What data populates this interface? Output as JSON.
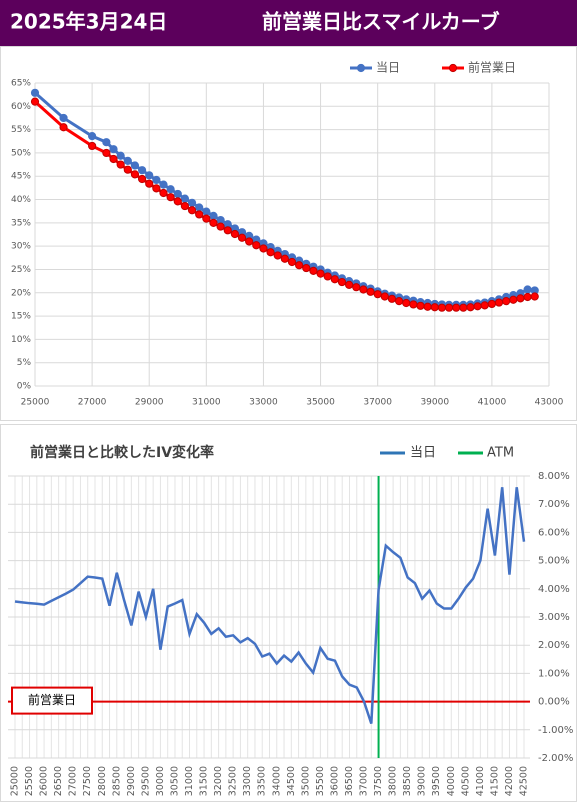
{
  "header": {
    "date": "2025年3月24日",
    "title": "前営業日比スマイルカーブ"
  },
  "chart_data": [
    {
      "type": "line",
      "x": [
        25000,
        26000,
        27000,
        27500,
        27750,
        28000,
        28250,
        28500,
        28750,
        29000,
        29250,
        29500,
        29750,
        30000,
        30250,
        30500,
        30750,
        31000,
        31250,
        31500,
        31750,
        32000,
        32250,
        32500,
        32750,
        33000,
        33250,
        33500,
        33750,
        34000,
        34250,
        34500,
        34750,
        35000,
        35250,
        35500,
        35750,
        36000,
        36250,
        36500,
        36750,
        37000,
        37250,
        37500,
        37750,
        38000,
        38250,
        38500,
        38750,
        39000,
        39250,
        39500,
        39750,
        40000,
        40250,
        40500,
        40750,
        41000,
        41250,
        41500,
        41750,
        42000,
        42250,
        42500
      ],
      "series": [
        {
          "name": "当日",
          "color": "#4472c4",
          "values": [
            62.9,
            57.5,
            53.6,
            52.3,
            50.8,
            49.4,
            48.3,
            47.3,
            46.3,
            45.2,
            44.2,
            43.2,
            42.2,
            41.2,
            40.2,
            39.3,
            38.3,
            37.4,
            36.5,
            35.6,
            34.7,
            33.8,
            33.0,
            32.2,
            31.4,
            30.6,
            29.8,
            29.0,
            28.3,
            27.6,
            26.9,
            26.2,
            25.6,
            25.0,
            24.3,
            23.7,
            23.1,
            22.5,
            22.0,
            21.4,
            20.9,
            20.3,
            19.8,
            19.4,
            19.0,
            18.6,
            18.3,
            18.0,
            17.8,
            17.6,
            17.5,
            17.4,
            17.4,
            17.4,
            17.5,
            17.7,
            17.9,
            18.2,
            18.6,
            19.1,
            19.5,
            19.9,
            20.7,
            20.5
          ]
        },
        {
          "name": "前営業日",
          "color": "#ff0000",
          "values": [
            61.0,
            55.5,
            51.5,
            50.0,
            48.7,
            47.5,
            46.4,
            45.4,
            44.4,
            43.4,
            42.4,
            41.4,
            40.5,
            39.6,
            38.6,
            37.7,
            36.8,
            35.9,
            35.0,
            34.2,
            33.4,
            32.6,
            31.8,
            31.0,
            30.2,
            29.5,
            28.7,
            28.0,
            27.3,
            26.6,
            25.9,
            25.3,
            24.7,
            24.1,
            23.5,
            22.9,
            22.3,
            21.7,
            21.2,
            20.7,
            20.2,
            19.7,
            19.2,
            18.7,
            18.2,
            17.8,
            17.5,
            17.2,
            17.0,
            16.9,
            16.8,
            16.8,
            16.8,
            16.8,
            16.9,
            17.1,
            17.3,
            17.6,
            17.9,
            18.2,
            18.5,
            18.8,
            19.1,
            19.2
          ]
        }
      ],
      "xlim": [
        25000,
        43000
      ],
      "xticks": [
        25000,
        27000,
        29000,
        31000,
        33000,
        35000,
        37000,
        39000,
        41000,
        43000
      ],
      "ylim": [
        0,
        65
      ],
      "yticks": [
        {
          "value": 0,
          "label": "0%"
        },
        {
          "value": 5,
          "label": "5%"
        },
        {
          "value": 10,
          "label": "10%"
        },
        {
          "value": 15,
          "label": "15%"
        },
        {
          "value": 20,
          "label": "20%"
        },
        {
          "value": 25,
          "label": "25%"
        },
        {
          "value": 30,
          "label": "30%"
        },
        {
          "value": 35,
          "label": "35%"
        },
        {
          "value": 40,
          "label": "40%"
        },
        {
          "value": 45,
          "label": "45%"
        },
        {
          "value": 50,
          "label": "50%"
        },
        {
          "value": 55,
          "label": "55%"
        },
        {
          "value": 60,
          "label": "60%"
        },
        {
          "value": 65,
          "label": "65%"
        }
      ],
      "grid": true,
      "legend": "top"
    },
    {
      "type": "line",
      "title": "前営業日と比較したIV変化率",
      "categories": [
        "25000",
        null,
        "25500",
        null,
        "26000",
        null,
        "26500",
        null,
        "27000",
        null,
        "27500",
        null,
        "28000",
        null,
        "28500",
        null,
        "29000",
        null,
        "29500",
        null,
        "30000",
        null,
        "30500",
        null,
        "31000",
        null,
        "31500",
        null,
        "32000",
        null,
        "32500",
        null,
        "33000",
        null,
        "33500",
        null,
        "34000",
        null,
        "34500",
        null,
        "35000",
        null,
        "35500",
        null,
        "36000",
        null,
        "36500",
        null,
        "37000",
        null,
        "37500",
        null,
        "38000",
        null,
        "38500",
        null,
        "39000",
        null,
        "39500",
        null,
        "40000",
        null,
        "40500",
        null,
        "41000",
        null,
        "41500",
        null,
        "42000",
        null,
        "42500"
      ],
      "series": [
        {
          "name": "当日",
          "color": "#4472c4",
          "values": [
            3.55,
            3.52,
            3.49,
            3.47,
            3.44,
            3.57,
            3.7,
            3.83,
            3.97,
            4.2,
            4.43,
            4.4,
            4.36,
            3.4,
            4.57,
            3.6,
            2.7,
            3.9,
            3.0,
            4.0,
            1.84,
            3.37,
            3.48,
            3.6,
            2.4,
            3.1,
            2.8,
            2.4,
            2.6,
            2.3,
            2.35,
            2.1,
            2.25,
            2.05,
            1.6,
            1.7,
            1.35,
            1.63,
            1.42,
            1.74,
            1.35,
            1.03,
            1.9,
            1.52,
            1.45,
            0.89,
            0.6,
            0.5,
            0.0,
            -0.78,
            3.97,
            5.53,
            5.3,
            5.1,
            4.4,
            4.2,
            3.65,
            3.94,
            3.48,
            3.3,
            3.3,
            3.65,
            4.05,
            4.36,
            5.0,
            6.84,
            5.18,
            7.6,
            4.5,
            7.6,
            5.67
          ]
        }
      ],
      "atm": {
        "name": "ATM",
        "color": "#00b050",
        "category": "37500"
      },
      "reference_line": {
        "label": "前営業日",
        "value": 0,
        "color": "#e00000"
      },
      "ylim": [
        -2,
        8
      ],
      "yticks": [
        {
          "value": 8,
          "label": "8.00%"
        },
        {
          "value": 7,
          "label": "7.00%"
        },
        {
          "value": 6,
          "label": "6.00%"
        },
        {
          "value": 5,
          "label": "5.00%"
        },
        {
          "value": 4,
          "label": "4.00%"
        },
        {
          "value": 3,
          "label": "3.00%"
        },
        {
          "value": 2,
          "label": "2.00%"
        },
        {
          "value": 1,
          "label": "1.00%"
        },
        {
          "value": 0,
          "label": "0.00%"
        },
        {
          "value": -1,
          "label": "-1.00%"
        },
        {
          "value": -2,
          "label": "-2.00%"
        }
      ],
      "grid": true,
      "legend": "top-right"
    }
  ]
}
